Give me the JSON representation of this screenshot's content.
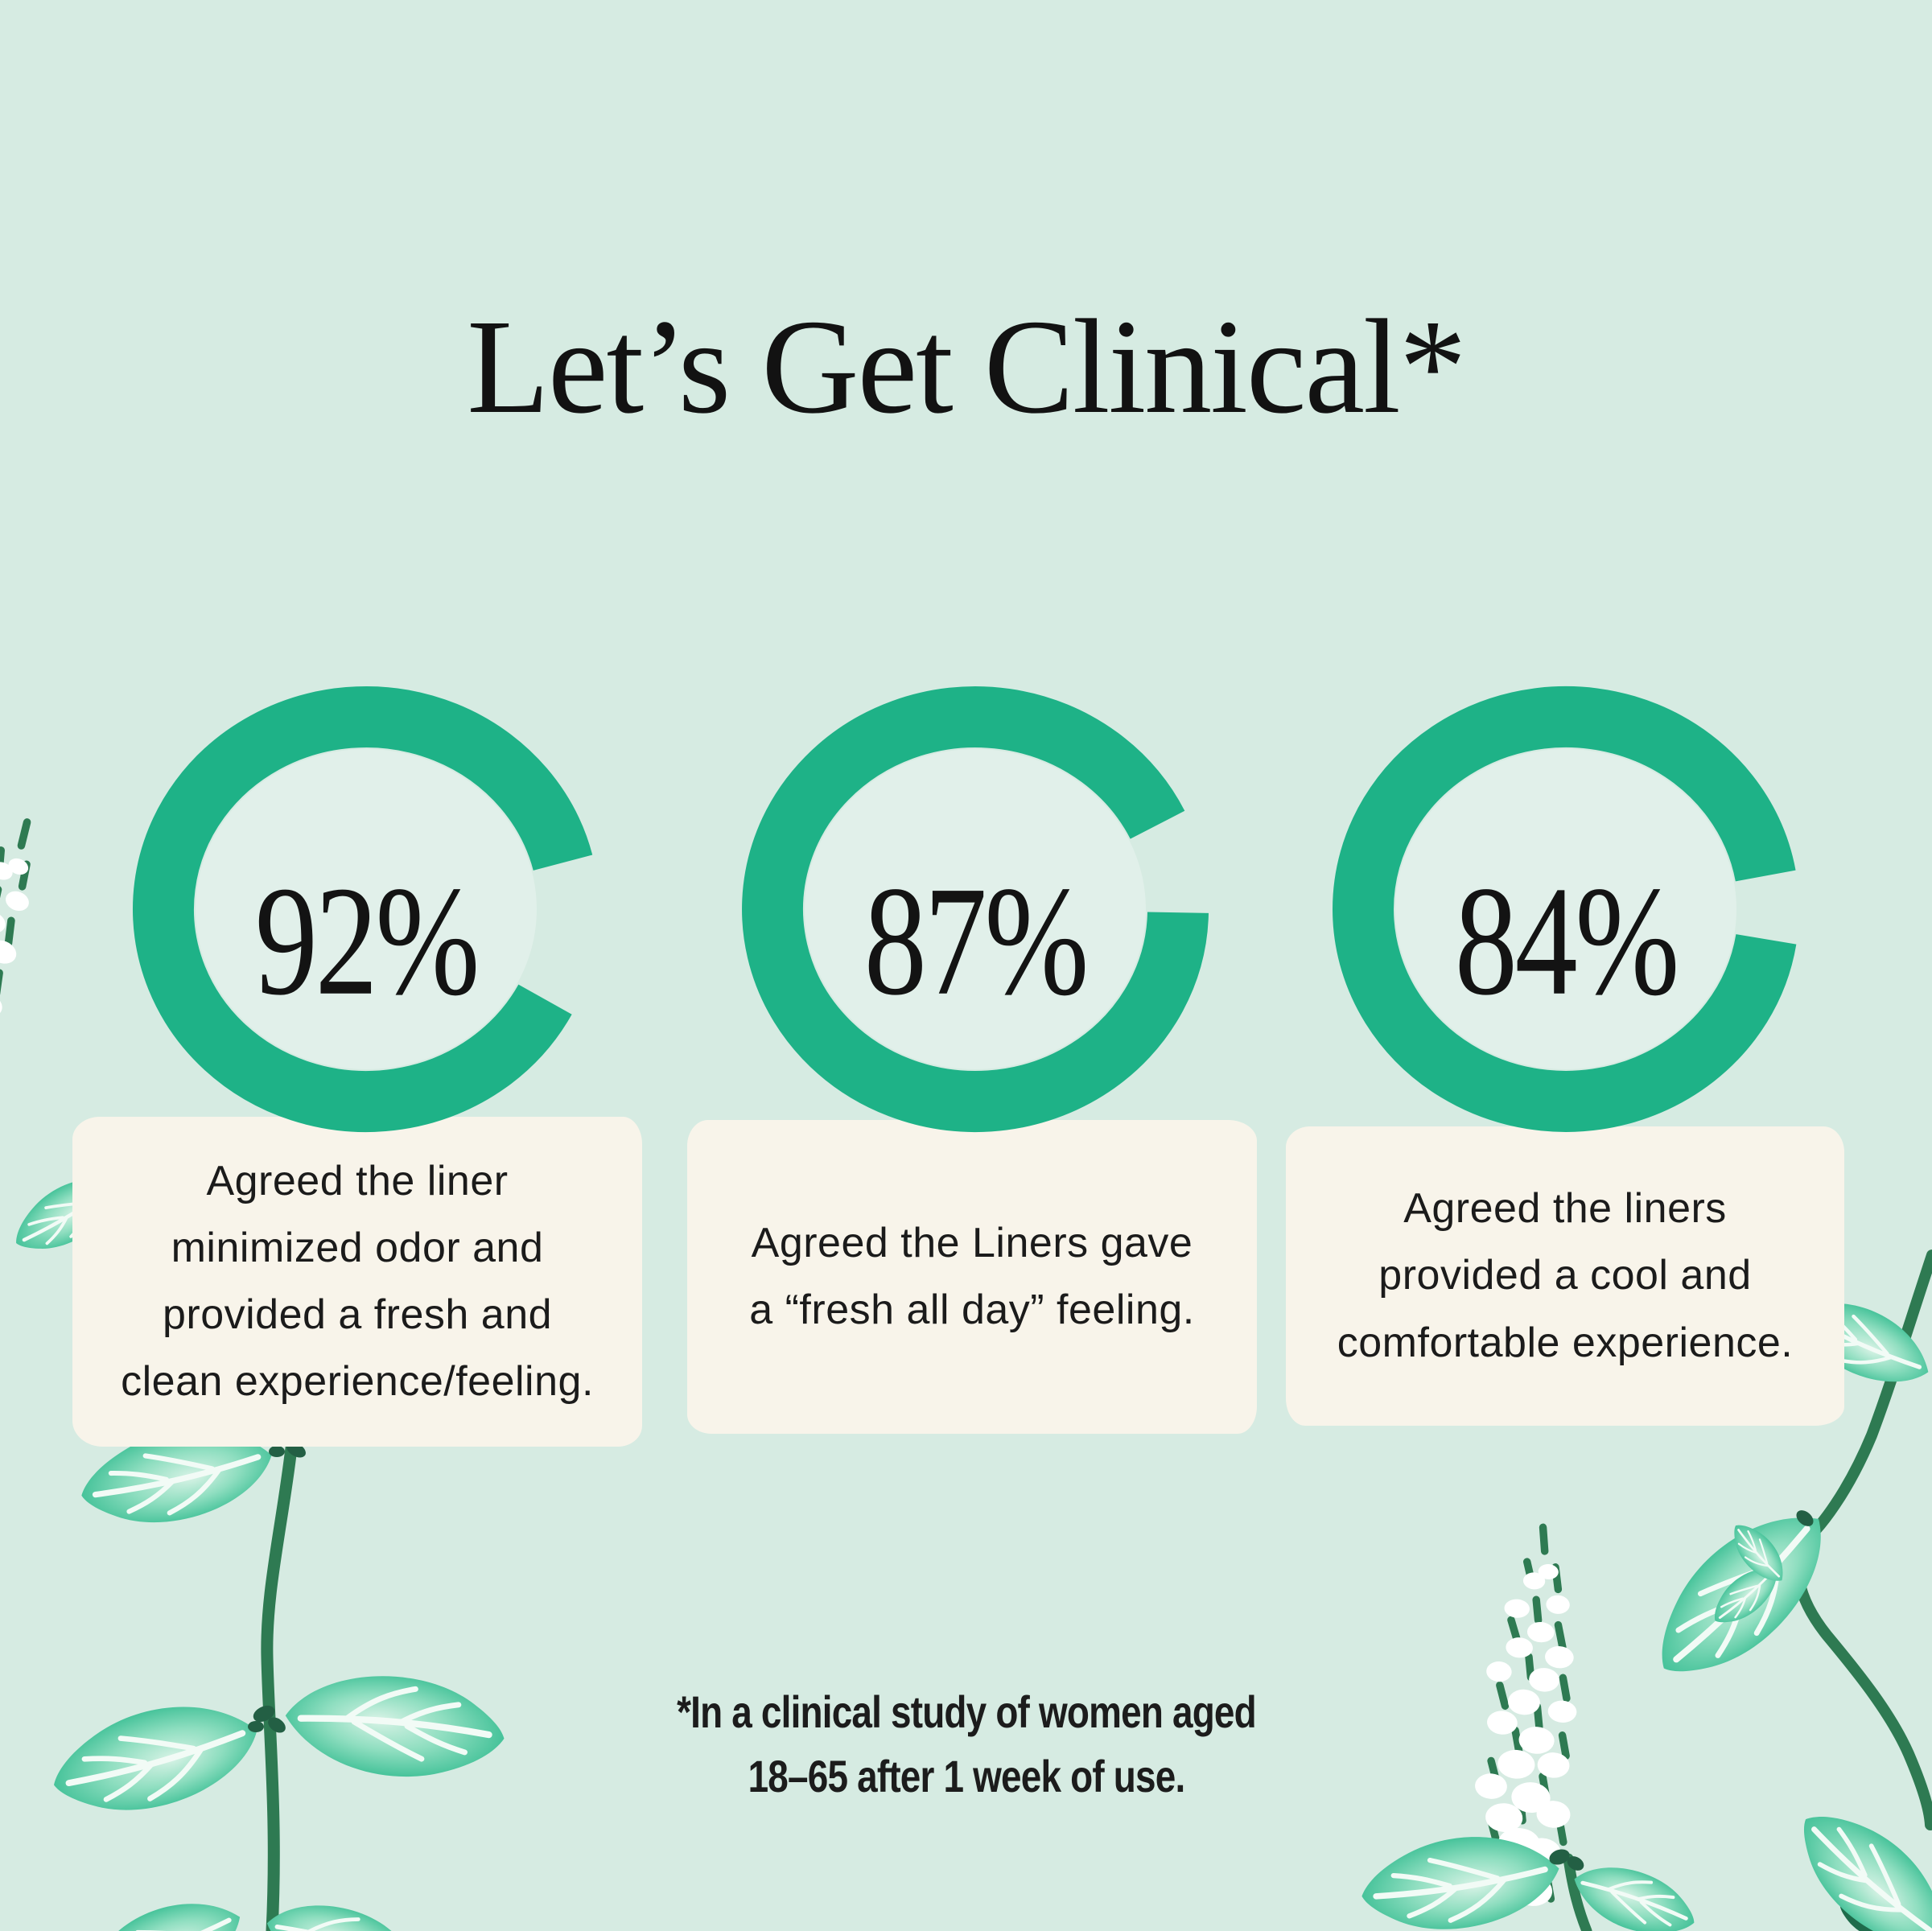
{
  "title": "Let’s Get Clinical*",
  "colors": {
    "background": "#d6ebe2",
    "accent_green": "#1eb287",
    "ring_inner_fill": "rgba(255,255,255,0.28)",
    "card_cream": "#f8f4ea",
    "ink": "#161616",
    "stem_green": "#2e7a52",
    "bud_green": "#235f44",
    "leaf_edge_green": "#24b688",
    "leaf_light_green": "#d8f3e6",
    "flower_white": "#ffffff"
  },
  "stats": [
    {
      "percent": "92%",
      "value": 92,
      "lines": [
        "Agreed the liner",
        "minimized odor and",
        "provided a fresh and",
        "clean experience/feeling."
      ],
      "ring": {
        "rx": 252,
        "ry": 239,
        "stroke_width": 76,
        "gap_start_deg": -28,
        "gap_end_deg": 14
      }
    },
    {
      "percent": "87%",
      "value": 87,
      "lines": [
        "Agreed the Liners gave",
        "a “fresh all day” feeling."
      ],
      "ring": {
        "rx": 252,
        "ry": 239,
        "stroke_width": 76,
        "gap_start_deg": -1,
        "gap_end_deg": 26
      }
    },
    {
      "percent": "84%",
      "value": 84,
      "lines": [
        "Agreed the liners",
        "provided a cool and",
        "comfortable experience."
      ],
      "ring": {
        "rx": 252,
        "ry": 239,
        "stroke_width": 76,
        "gap_start_deg": -9,
        "gap_end_deg": 10
      }
    }
  ],
  "footnote": {
    "line1": "*In a clinical study of women aged",
    "line2": "18–65 after 1 week of use."
  },
  "decorations": [
    "flower-spike-top-left",
    "mint-sprig-bottom-left",
    "flower-spike-bottom-right",
    "mint-sprig-right",
    "mint-leaf-bottom-right-corner"
  ],
  "chart_data": {
    "type": "pie",
    "subtype": "donut-stat-rings",
    "title": "Let’s Get Clinical*",
    "labels": [
      "92%",
      "87%",
      "84%"
    ],
    "values": [
      92,
      87,
      84
    ],
    "unit": "%",
    "categories": [
      "Agreed the liner minimized odor and provided a fresh and clean experience/feeling.",
      "Agreed the Liners gave a “fresh all day” feeling.",
      "Agreed the liners provided a cool and comfortable experience."
    ],
    "annotation": "*In a clinical study of women aged 18–65 after 1 week of use.",
    "legend_position": "none"
  }
}
